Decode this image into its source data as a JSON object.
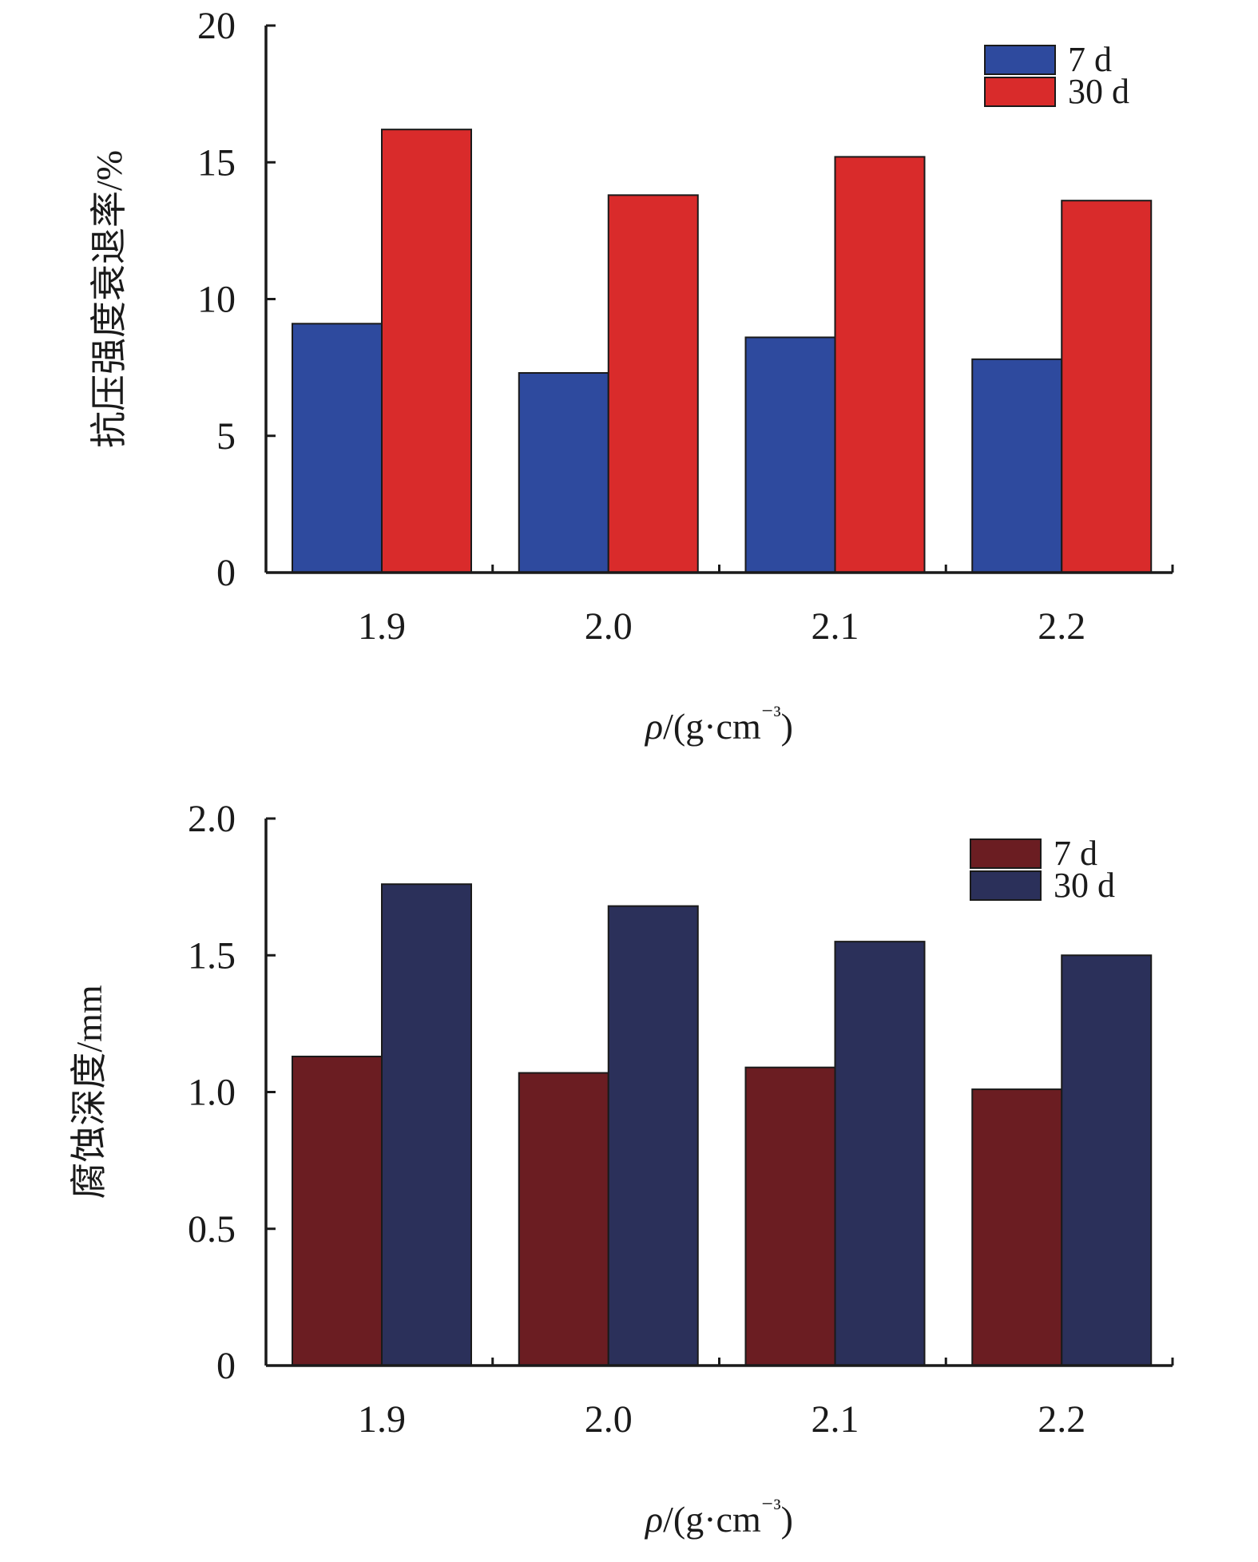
{
  "chart_data": [
    {
      "type": "bar",
      "categories": [
        "1.9",
        "2.0",
        "2.1",
        "2.2"
      ],
      "series": [
        {
          "name": "7 d",
          "values": [
            9.1,
            7.3,
            8.6,
            7.8
          ],
          "color": "#2e4a9e"
        },
        {
          "name": "30 d",
          "values": [
            16.2,
            13.8,
            15.2,
            13.6
          ],
          "color": "#d92b2b"
        }
      ],
      "y_ticks": [
        "0",
        "5",
        "10",
        "15",
        "20"
      ],
      "xlabel": "ρ/(g·cm⁻³)",
      "ylabel": "抗压强度衰退率/%",
      "ylim": [
        0,
        20
      ],
      "legend_position": "top-right",
      "grid": false
    },
    {
      "type": "bar",
      "categories": [
        "1.9",
        "2.0",
        "2.1",
        "2.2"
      ],
      "series": [
        {
          "name": "7 d",
          "values": [
            1.13,
            1.07,
            1.09,
            1.01
          ],
          "color": "#6b1d22"
        },
        {
          "name": "30 d",
          "values": [
            1.76,
            1.68,
            1.55,
            1.5
          ],
          "color": "#2b305a"
        }
      ],
      "y_ticks": [
        "0",
        "0.5",
        "1.0",
        "1.5",
        "2.0"
      ],
      "xlabel": "ρ/(g·cm⁻³)",
      "ylabel": "腐蚀深度/mm",
      "ylim": [
        0,
        2.0
      ],
      "legend_position": "top-right",
      "grid": false
    }
  ]
}
